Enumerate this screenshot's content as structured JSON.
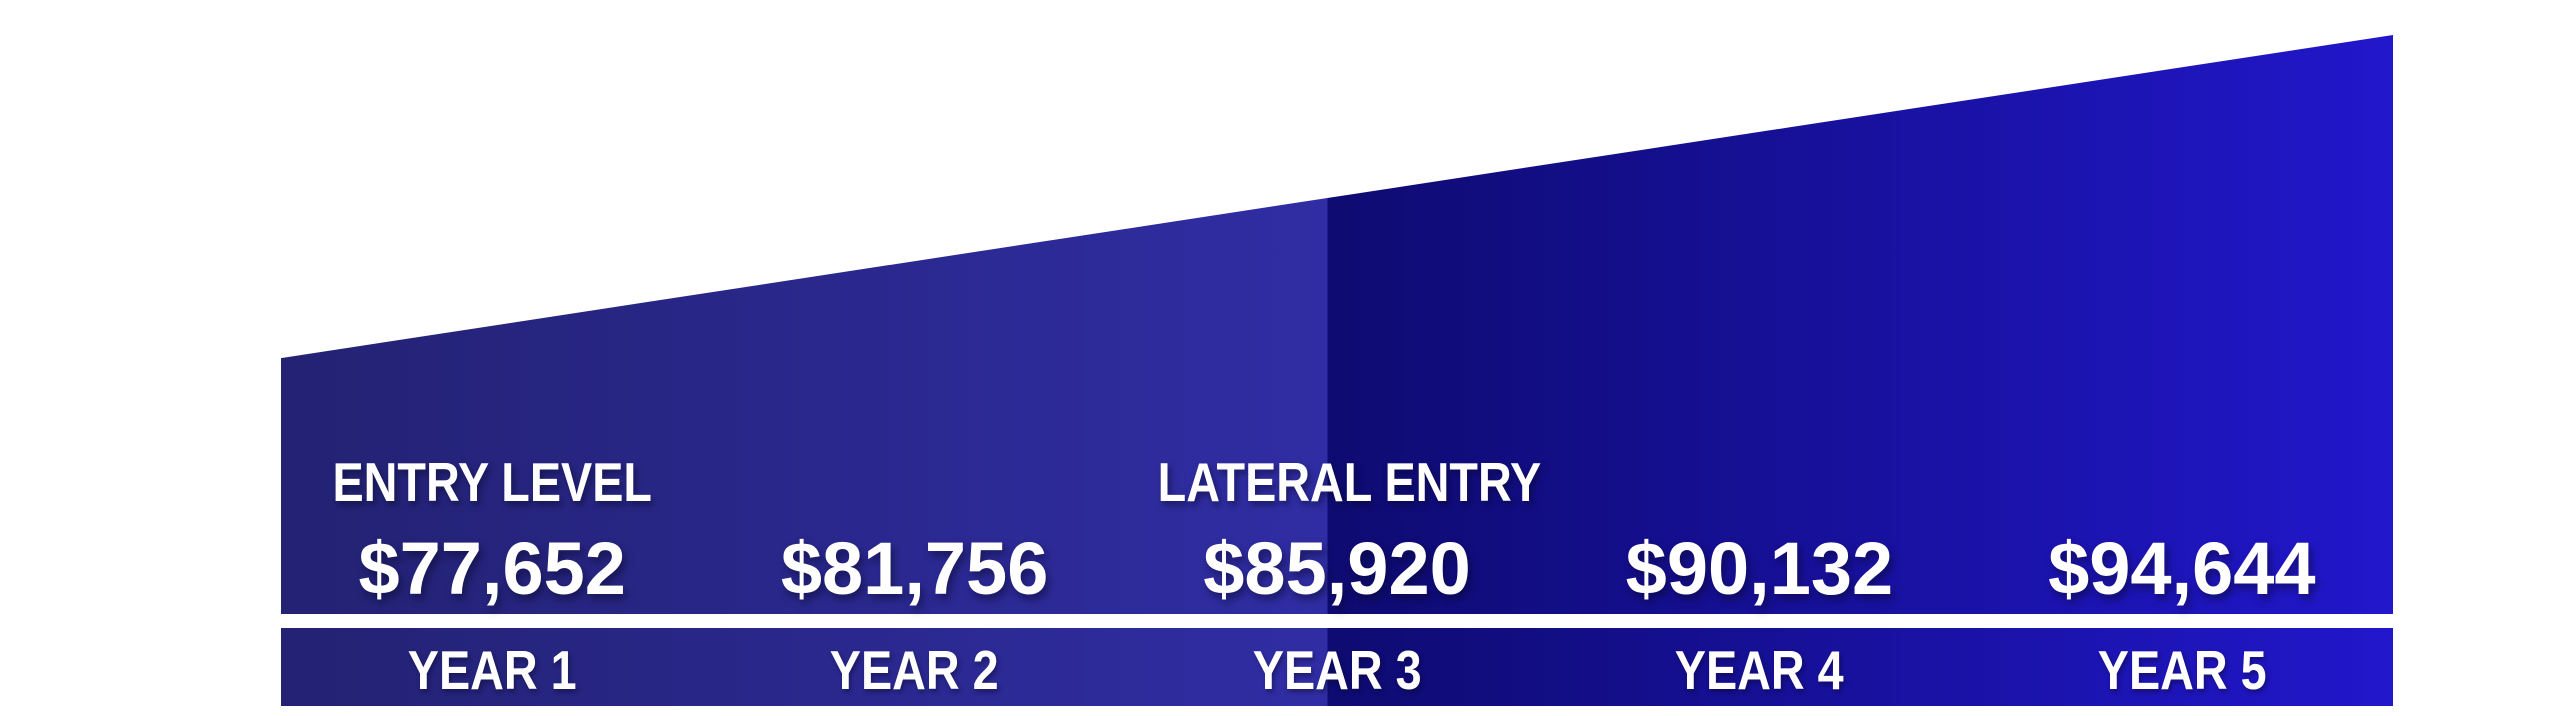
{
  "chart_data": {
    "type": "area",
    "title": "",
    "categories": [
      "YEAR 1",
      "YEAR 2",
      "YEAR 3",
      "YEAR 4",
      "YEAR 5"
    ],
    "values": [
      77652,
      81756,
      85920,
      90132,
      94644
    ],
    "value_labels": [
      "$77,652",
      "$81,756",
      "$85,920",
      "$90,132",
      "$94,644"
    ],
    "annotations": [
      {
        "text": "ENTRY LEVEL",
        "at_category": "YEAR 1"
      },
      {
        "text": "LATERAL ENTRY",
        "at_category": "YEAR 3"
      }
    ],
    "xlabel": "",
    "ylabel": "",
    "grid": false,
    "legend": false,
    "style": "rising-wedge salary ramp infographic, hard gradient seam at mid-width"
  },
  "columns": [
    {
      "tag": "ENTRY LEVEL",
      "amount": "$77,652",
      "year_label": "YEAR 1"
    },
    {
      "tag": "",
      "amount": "$81,756",
      "year_label": "YEAR 2"
    },
    {
      "tag": "LATERAL ENTRY",
      "amount": "$85,920",
      "year_label": "YEAR 3"
    },
    {
      "tag": "",
      "amount": "$90,132",
      "year_label": "YEAR 4"
    },
    {
      "tag": "",
      "amount": "$94,644",
      "year_label": "YEAR 5"
    }
  ],
  "colors": {
    "background": "#ffffff",
    "gradient_left_start": "#232273",
    "gradient_left_end": "#302da4",
    "gradient_right_start": "#0e0b71",
    "gradient_right_end": "#2217cb",
    "text": "#ffffff"
  }
}
